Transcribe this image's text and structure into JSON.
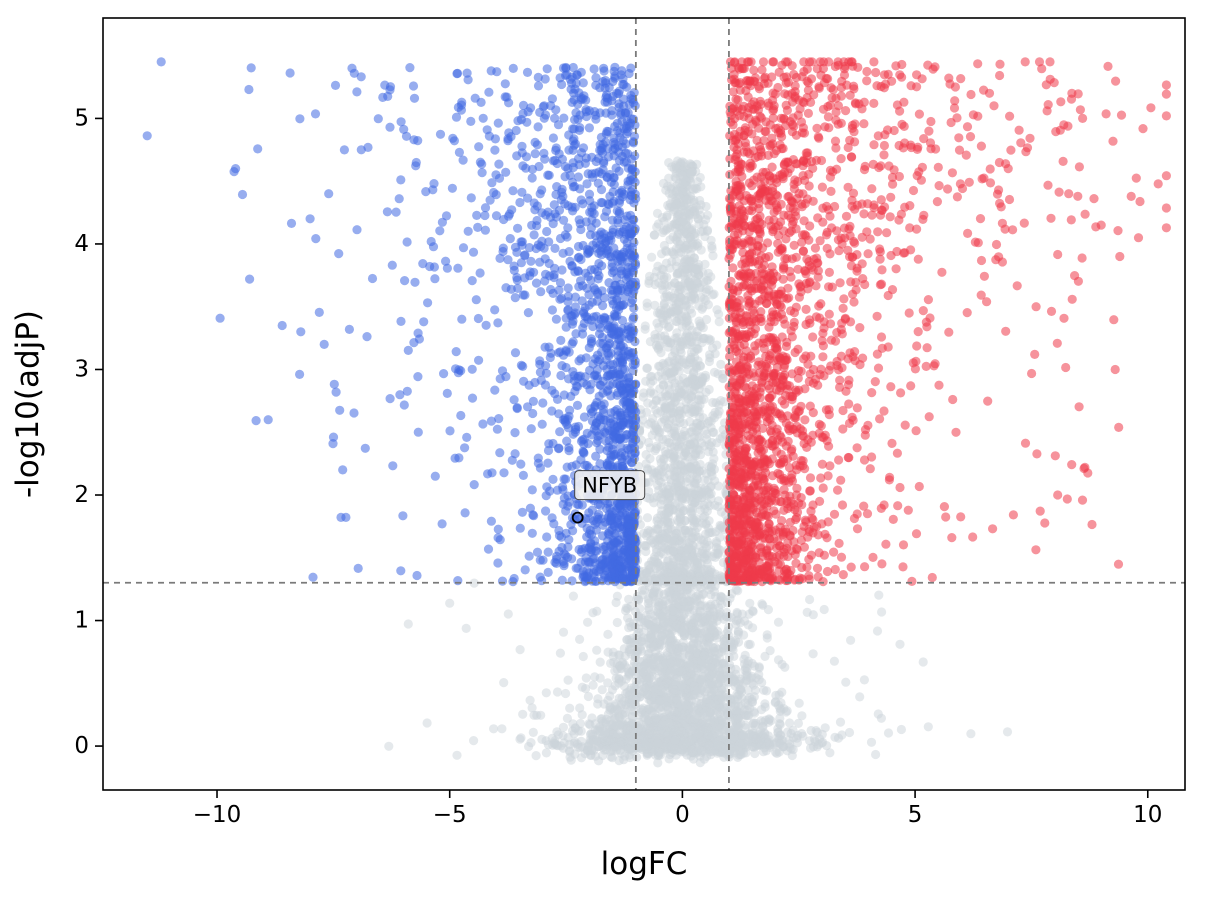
{
  "chart_data": {
    "type": "scatter",
    "title": "",
    "xlabel": "logFC",
    "ylabel": "-log10(adjP)",
    "xlim": [
      -12.45,
      10.8
    ],
    "ylim": [
      -0.35,
      5.8
    ],
    "xticks": [
      -10,
      -5,
      0,
      5,
      10
    ],
    "xtick_labels": [
      "−10",
      "−5",
      "0",
      "5",
      "10"
    ],
    "yticks": [
      0,
      1,
      2,
      3,
      4,
      5
    ],
    "ytick_labels": [
      "0",
      "1",
      "2",
      "3",
      "4",
      "5"
    ],
    "grid": false,
    "legend": null,
    "background": "#ffffff",
    "spine_color": "#000000",
    "threshold_line_color": "#7a7a7a",
    "thresholds": {
      "logfc_low": -1,
      "logfc_high": 1,
      "neg_log10_p": 1.301
    },
    "y_cap": 5.45,
    "annotation": {
      "label": "NFYB",
      "x": -2.25,
      "y": 1.82
    },
    "series": [
      {
        "name": "not-significant",
        "color": "#ccd4da",
        "opacity": 0.5,
        "count": 3900
      },
      {
        "name": "downregulated",
        "color": "#4169e1",
        "opacity": 0.55,
        "count": 1760
      },
      {
        "name": "upregulated",
        "color": "#ee3a4a",
        "opacity": 0.55,
        "count": 2160
      }
    ],
    "notable_points": {
      "downregulated": [
        [
          -11.2,
          5.45
        ],
        [
          -9.6,
          4.6
        ],
        [
          -9.3,
          3.72
        ],
        [
          -8.9,
          2.6
        ],
        [
          -8.6,
          3.35
        ],
        [
          -8.2,
          3.3
        ],
        [
          -8.0,
          4.2
        ],
        [
          -7.6,
          4.4
        ],
        [
          -7.3,
          2.2
        ],
        [
          -6.9,
          4.75
        ]
      ],
      "upregulated": [
        [
          9.8,
          4.05
        ],
        [
          9.4,
          3.9
        ],
        [
          9.0,
          4.15
        ],
        [
          8.6,
          5.0
        ],
        [
          8.3,
          4.4
        ],
        [
          7.9,
          5.45
        ],
        [
          7.6,
          3.5
        ],
        [
          7.0,
          4.6
        ],
        [
          6.6,
          5.2
        ],
        [
          9.3,
          3.0
        ]
      ]
    },
    "generator": {
      "seed": 1337,
      "point_radius": 4.6,
      "gray_bottom": {
        "count": 2400,
        "y_pow": 2.2,
        "y_max": 1.32,
        "x_sigma_base": 0.5,
        "x_sigma_extra": 0.75,
        "wide_frac": 0.07,
        "wide_sigma": 2.4,
        "y_jitter": 0.05
      },
      "gray_column": {
        "count": 1500,
        "y_pow": 1.5,
        "y_span": 3.35,
        "x_sigma": 0.5,
        "dome_span": 3.5
      },
      "down": {
        "count": 1750,
        "y_pow": 1.25,
        "y_span": 4.1,
        "exp_base": 0.5,
        "exp_slope": 0.33,
        "uniform_frac": 0.05,
        "uniform_max": 8.0,
        "x_max": 11.5
      },
      "up": {
        "count": 2150,
        "y_pow": 1.25,
        "y_span": 4.2,
        "exp_base": 0.55,
        "exp_slope": 0.38,
        "uniform_frac": 0.06,
        "uniform_max": 9.5,
        "x_max": 10.4
      }
    }
  }
}
